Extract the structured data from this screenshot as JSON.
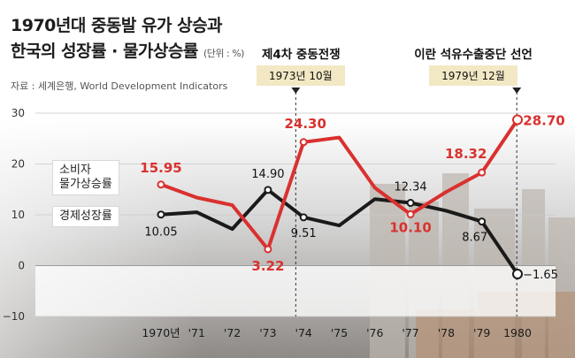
{
  "header": {
    "title_line1": "1970년대 중동발 유가 상승과",
    "title_line2": "한국의 성장률 · 물가상승률",
    "unit": "(단위 : %)",
    "source": "자료 : 세계은행, World Development Indicators"
  },
  "events": [
    {
      "title": "제4차 중동전쟁",
      "date": "1973년 10월"
    },
    {
      "title": "이란 석유수출중단 선언",
      "date": "1979년 12월"
    }
  ],
  "legend": {
    "cpi_line1": "소비자",
    "cpi_line2": "물가상승률",
    "gdp": "경제성장률"
  },
  "colors": {
    "cpi": "#d9312f",
    "gdp": "#1a1a1a",
    "event_date_bg": "#f2e8c4"
  },
  "chart_data": {
    "type": "line",
    "title": "1970년대 중동발 유가 상승과 한국의 성장률 · 물가상승률",
    "xlabel": "",
    "ylabel": "",
    "x_tick_labels": [
      "1970년",
      "'71",
      "'72",
      "'73",
      "'74",
      "'75",
      "'76",
      "'77",
      "'78",
      "'79",
      "1980"
    ],
    "y_ticks": [
      -10,
      0,
      10,
      20,
      30
    ],
    "ylim": [
      -10,
      30
    ],
    "series": [
      {
        "name": "소비자 물가상승률",
        "values": [
          15.95,
          13.4,
          11.9,
          3.22,
          24.3,
          25.2,
          15.3,
          10.1,
          14.5,
          18.32,
          28.7
        ],
        "labels": [
          "15.95",
          "",
          "",
          "3.22",
          "24.30",
          "",
          "",
          "10.10",
          "",
          "18.32",
          "28.70"
        ]
      },
      {
        "name": "경제성장률",
        "values": [
          10.05,
          10.5,
          7.2,
          14.9,
          9.51,
          7.9,
          13.1,
          12.34,
          10.8,
          8.67,
          -1.65
        ],
        "labels": [
          "10.05",
          "",
          "",
          "14.90",
          "9.51",
          "",
          "",
          "12.34",
          "",
          "8.67",
          "−1.65"
        ]
      }
    ],
    "event_markers": [
      {
        "after_index": 3,
        "fraction": 0.78,
        "label": "1973년 10월"
      },
      {
        "after_index": 9,
        "fraction": 0.98,
        "label": "1979년 12월"
      }
    ]
  }
}
